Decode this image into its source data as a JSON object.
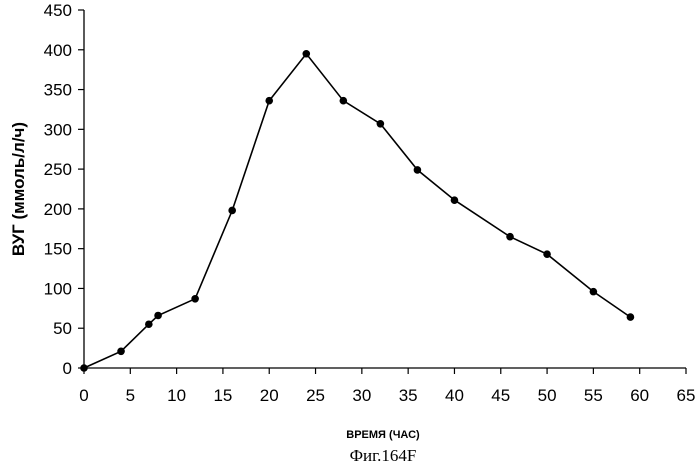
{
  "chart_data": {
    "type": "line",
    "title": "",
    "xlabel": "ВРЕМЯ (ЧАС)",
    "ylabel": "ВУГ (ммоль/л/ч)",
    "xlim": [
      0,
      65
    ],
    "ylim": [
      0,
      450
    ],
    "x_ticks": [
      0,
      5,
      10,
      15,
      20,
      25,
      30,
      35,
      40,
      45,
      50,
      55,
      60,
      65
    ],
    "y_ticks": [
      0,
      50,
      100,
      150,
      200,
      250,
      300,
      350,
      400,
      450
    ],
    "grid": false,
    "legend": "none",
    "series": [
      {
        "x": [
          0,
          4,
          7,
          8,
          12,
          16,
          20,
          24,
          28,
          32,
          36,
          40,
          46,
          50,
          55,
          59
        ],
        "y": [
          0,
          21,
          55,
          66,
          87,
          198,
          336,
          395,
          336,
          307,
          249,
          211,
          165,
          143,
          96,
          64
        ],
        "color": "#000000"
      }
    ],
    "caption": "Фиг.164F"
  }
}
